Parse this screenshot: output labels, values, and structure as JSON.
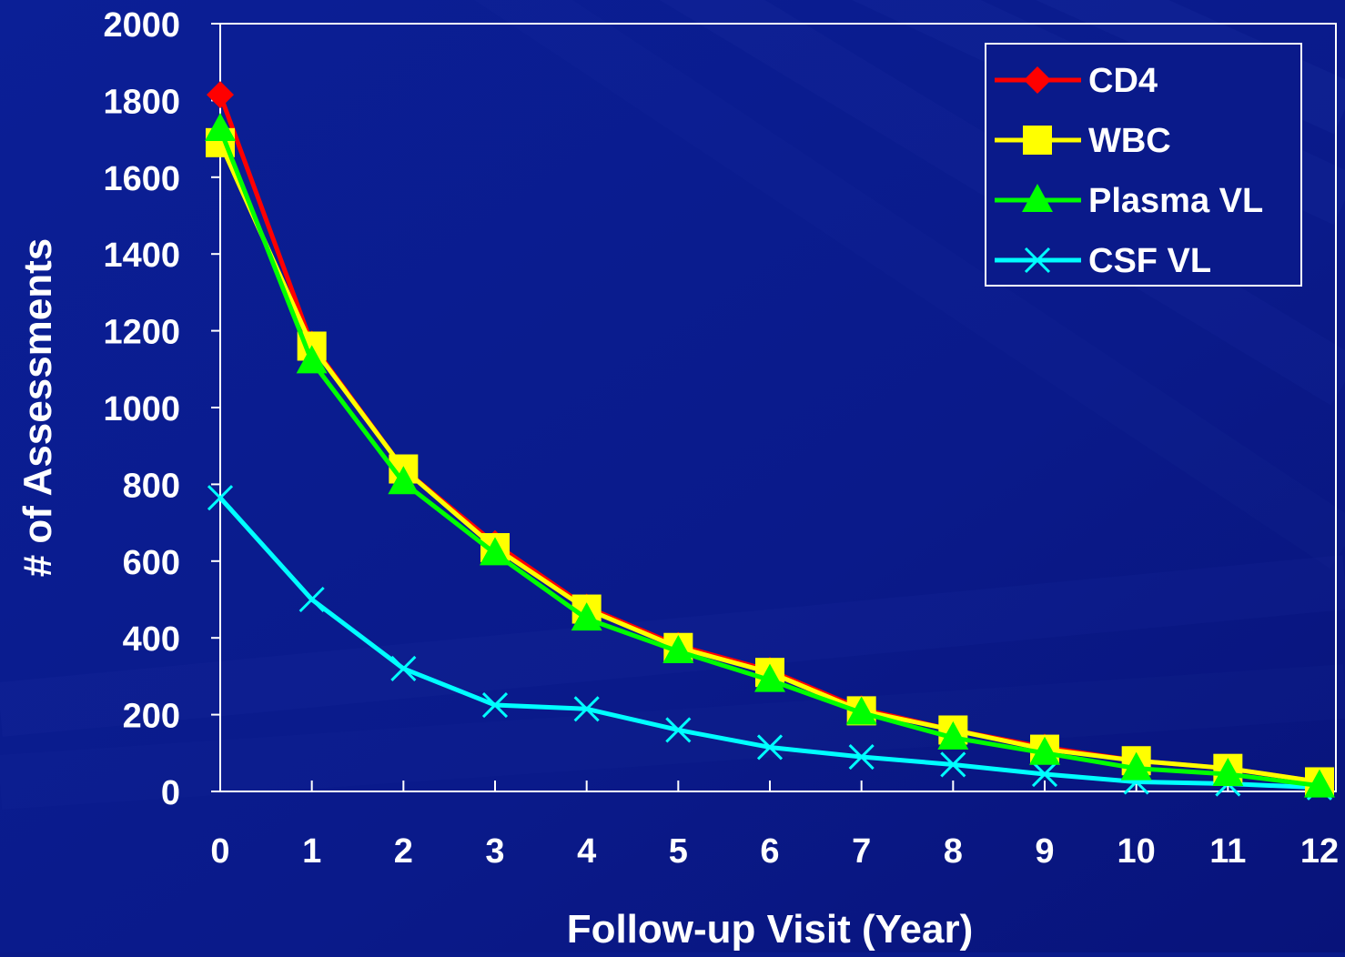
{
  "chart_data": {
    "type": "line",
    "xlabel": "Follow-up Visit (Year)",
    "ylabel": "# of Assessments",
    "x": [
      0,
      1,
      2,
      3,
      4,
      5,
      6,
      7,
      8,
      9,
      10,
      11,
      12
    ],
    "xlim": [
      0,
      12
    ],
    "ylim": [
      0,
      2000
    ],
    "yticks": [
      0,
      200,
      400,
      600,
      800,
      1000,
      1200,
      1400,
      1600,
      1800,
      2000
    ],
    "grid": false,
    "legend_position": "top-right",
    "series": [
      {
        "name": "CD4",
        "color": "#ff0000",
        "marker": "diamond",
        "values": [
          1815,
          1165,
          840,
          645,
          480,
          380,
          315,
          215,
          160,
          115,
          80,
          60,
          25
        ]
      },
      {
        "name": "WBC",
        "color": "#ffff00",
        "marker": "square",
        "values": [
          1690,
          1160,
          840,
          635,
          475,
          375,
          310,
          210,
          160,
          110,
          80,
          60,
          25
        ]
      },
      {
        "name": "Plasma VL",
        "color": "#00ff00",
        "marker": "triangle",
        "values": [
          1725,
          1120,
          805,
          620,
          450,
          365,
          290,
          205,
          140,
          100,
          60,
          45,
          15
        ]
      },
      {
        "name": "CSF VL",
        "color": "#00ffff",
        "marker": "x",
        "values": [
          765,
          500,
          320,
          225,
          215,
          160,
          115,
          90,
          70,
          45,
          25,
          20,
          10
        ]
      }
    ]
  },
  "colors": {
    "background": "#0a1a8a",
    "axis": "#ffffff",
    "text": "#ffffff"
  }
}
